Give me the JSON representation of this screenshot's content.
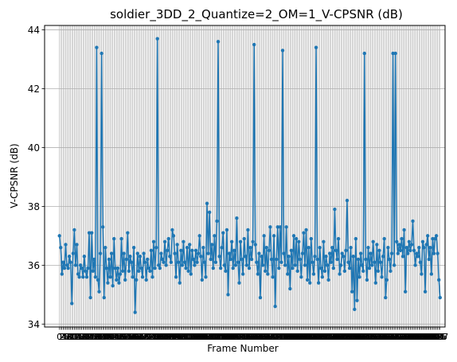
{
  "chart_data": {
    "type": "line",
    "title": "soldier_3DD_2_Quantize=2_OM=1_V-CPSNR (dB)",
    "xlabel": "Frame Number",
    "ylabel": "V-CPSNR (dB)",
    "xlim": [
      -12,
      311
    ],
    "ylim": [
      33.9,
      44.15
    ],
    "yticks": [
      34,
      36,
      38,
      40,
      42,
      44
    ],
    "grid": true,
    "series_color": "#1f77b4",
    "x_start": 0,
    "values": [
      37.0,
      36.6,
      35.7,
      36.1,
      35.9,
      36.7,
      36.0,
      35.9,
      36.3,
      36.1,
      34.7,
      36.4,
      37.2,
      36.0,
      36.7,
      35.7,
      35.6,
      36.0,
      35.9,
      35.6,
      36.3,
      35.8,
      35.6,
      35.9,
      37.1,
      34.9,
      37.1,
      35.8,
      36.2,
      35.6,
      43.4,
      35.5,
      35.1,
      36.4,
      43.2,
      37.3,
      34.9,
      36.6,
      35.9,
      35.4,
      36.2,
      35.6,
      36.4,
      35.3,
      36.9,
      35.9,
      35.5,
      35.9,
      35.4,
      35.7,
      36.9,
      35.8,
      36.4,
      35.5,
      36.2,
      37.1,
      35.8,
      36.3,
      36.1,
      35.6,
      36.6,
      34.4,
      35.5,
      36.4,
      35.8,
      36.3,
      35.9,
      35.6,
      36.4,
      36.1,
      35.5,
      36.2,
      35.9,
      35.8,
      36.5,
      35.6,
      36.8,
      35.9,
      36.6,
      43.7,
      36.0,
      35.9,
      36.4,
      36.2,
      36.1,
      36.8,
      36.0,
      36.5,
      36.9,
      36.3,
      36.1,
      37.2,
      37.0,
      36.4,
      35.6,
      36.7,
      36.1,
      35.4,
      36.5,
      36.0,
      36.8,
      36.1,
      35.9,
      36.6,
      35.8,
      36.7,
      35.7,
      36.5,
      36.2,
      36.0,
      36.5,
      36.1,
      36.4,
      37.0,
      36.3,
      35.5,
      36.6,
      36.1,
      35.6,
      38.1,
      36.4,
      37.8,
      36.2,
      36.7,
      35.9,
      37.0,
      36.1,
      37.5,
      43.6,
      36.3,
      35.9,
      36.6,
      37.1,
      36.0,
      35.8,
      37.2,
      35.0,
      36.4,
      36.2,
      36.8,
      35.9,
      36.5,
      36.0,
      37.6,
      36.1,
      35.4,
      36.8,
      36.2,
      35.7,
      36.9,
      36.3,
      36.0,
      37.2,
      35.9,
      36.6,
      36.2,
      36.8,
      43.5,
      36.7,
      36.1,
      35.7,
      36.4,
      34.9,
      36.3,
      36.0,
      37.0,
      35.8,
      36.6,
      35.7,
      36.5,
      37.3,
      36.2,
      35.6,
      37.0,
      34.6,
      36.2,
      37.3,
      35.9,
      37.3,
      36.1,
      43.3,
      36.4,
      36.0,
      37.3,
      35.7,
      36.3,
      35.2,
      36.5,
      35.9,
      37.0,
      36.0,
      36.9,
      35.8,
      36.8,
      36.2,
      35.6,
      36.4,
      37.1,
      36.0,
      37.2,
      35.5,
      36.6,
      35.4,
      36.9,
      36.1,
      35.7,
      36.3,
      43.4,
      36.2,
      35.4,
      36.6,
      35.9,
      35.6,
      36.8,
      35.8,
      36.3,
      36.0,
      35.5,
      36.4,
      36.1,
      36.6,
      35.9,
      37.9,
      36.5,
      36.2,
      36.9,
      35.7,
      36.0,
      36.4,
      36.3,
      35.8,
      36.5,
      38.2,
      36.1,
      35.9,
      36.6,
      35.1,
      36.3,
      34.5,
      36.9,
      34.8,
      36.2,
      35.6,
      36.4,
      36.0,
      35.8,
      43.2,
      36.2,
      35.5,
      36.6,
      35.9,
      36.4,
      36.0,
      36.8,
      36.1,
      35.4,
      36.7,
      35.8,
      36.5,
      36.1,
      35.6,
      36.3,
      36.9,
      34.9,
      35.5,
      36.6,
      36.2,
      35.8,
      36.4,
      43.2,
      36.0,
      43.2,
      36.8,
      36.4,
      36.7,
      36.5,
      36.9,
      36.3,
      37.2,
      35.1,
      36.6,
      36.4,
      36.8,
      36.5,
      36.7,
      37.5,
      36.5,
      36.0,
      36.4,
      36.3,
      36.6,
      36.1,
      35.7,
      36.8,
      36.6,
      35.1,
      36.7,
      37.0,
      36.2,
      36.6,
      35.7,
      36.9,
      36.4,
      36.9,
      37.0,
      36.4,
      35.5,
      34.9
    ]
  }
}
